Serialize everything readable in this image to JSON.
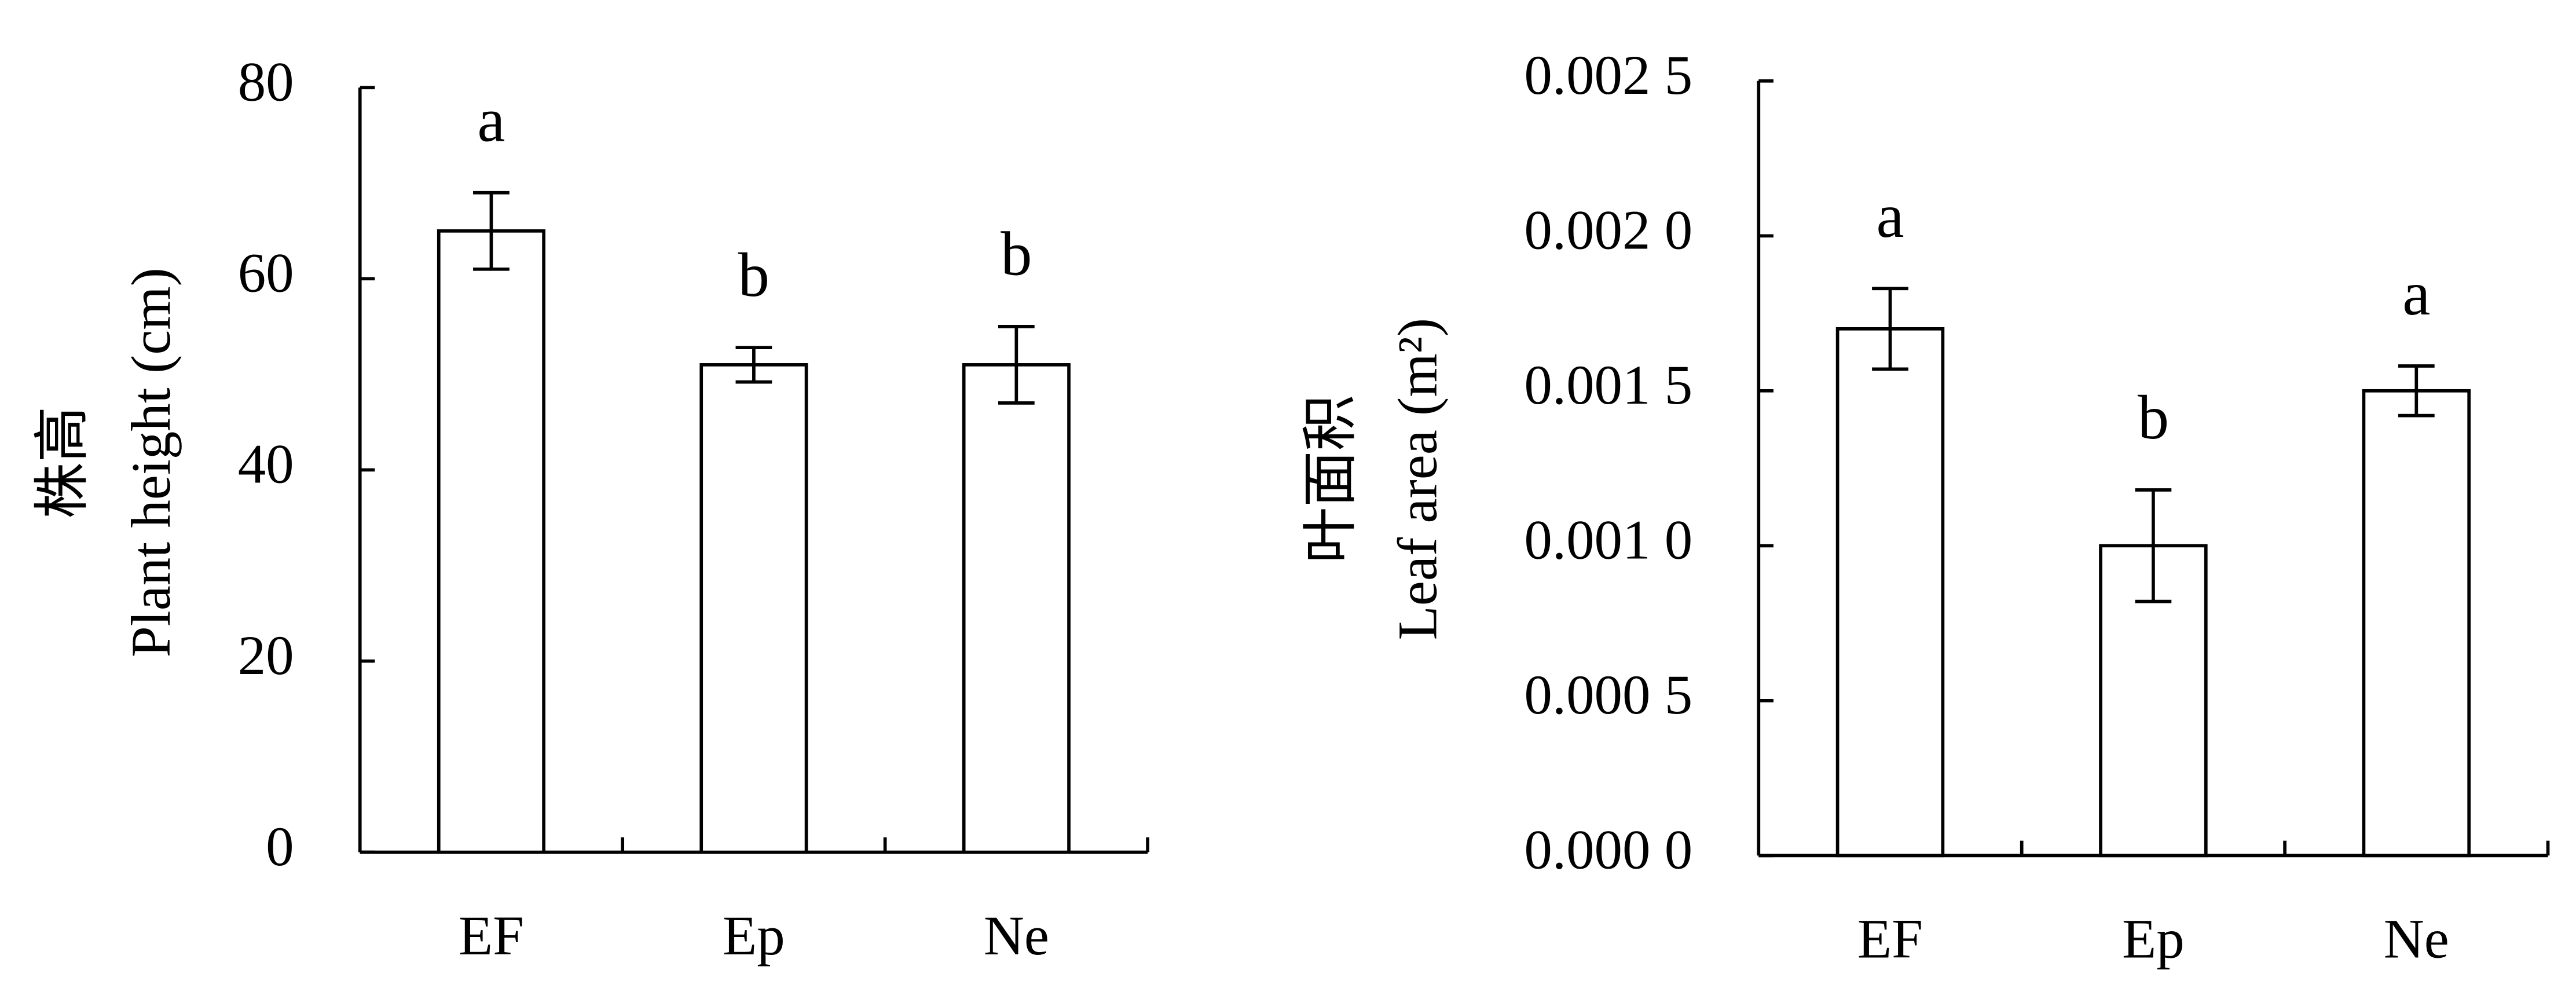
{
  "chart_data": [
    {
      "type": "bar",
      "ylabel_cn": "株高",
      "ylabel": "Plant height (cm)",
      "categories": [
        "EF",
        "Ep",
        "Ne"
      ],
      "values": [
        65,
        51,
        51
      ],
      "errors": [
        4,
        1.8,
        4
      ],
      "annotations": [
        "a",
        "b",
        "b"
      ],
      "color": "#ffffff",
      "ylim": [
        0,
        80
      ],
      "yticks": [
        0,
        20,
        40,
        60,
        80
      ]
    },
    {
      "type": "bar",
      "ylabel_cn": "叶面积",
      "ylabel": "Leaf area (m²)",
      "categories": [
        "EF",
        "Ep",
        "Ne"
      ],
      "values": [
        0.0017,
        0.001,
        0.0015
      ],
      "errors": [
        0.00013,
        0.00018,
        8e-05
      ],
      "annotations": [
        "a",
        "b",
        "a"
      ],
      "color": "#ffffff",
      "ylim": [
        0,
        0.0025
      ],
      "yticks": [
        {
          "value": 0,
          "label": "0.000 0"
        },
        {
          "value": 0.0005,
          "label": "0.000 5"
        },
        {
          "value": 0.001,
          "label": "0.001 0"
        },
        {
          "value": 0.0015,
          "label": "0.001 5"
        },
        {
          "value": 0.002,
          "label": "0.002 0"
        },
        {
          "value": 0.0025,
          "label": "0.002 5"
        }
      ]
    }
  ]
}
